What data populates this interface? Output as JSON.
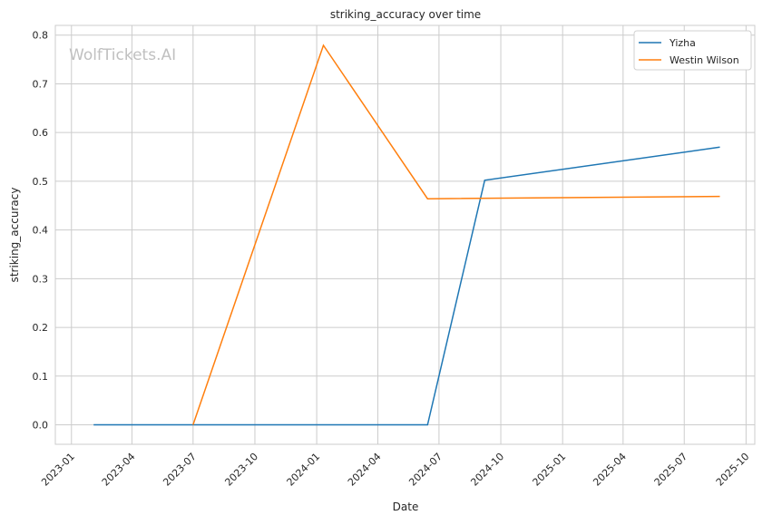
{
  "chart_data": {
    "type": "line",
    "title": "striking_accuracy over time",
    "xlabel": "Date",
    "ylabel": "striking_accuracy",
    "watermark": "WolfTickets.AI",
    "grid": true,
    "legend_position": "top-right",
    "xlim": [
      "2022-12-08",
      "2025-10-14"
    ],
    "ylim": [
      -0.04,
      0.82
    ],
    "x_ticks": [
      "2023-01",
      "2023-04",
      "2023-07",
      "2023-10",
      "2024-01",
      "2024-04",
      "2024-07",
      "2024-10",
      "2025-01",
      "2025-04",
      "2025-07",
      "2025-10"
    ],
    "y_ticks": [
      "0.0",
      "0.1",
      "0.2",
      "0.3",
      "0.4",
      "0.5",
      "0.6",
      "0.7",
      "0.8"
    ],
    "series": [
      {
        "name": "Yizha",
        "color": "#1f77b4",
        "x": [
          "2023-02-03",
          "2024-06-14",
          "2024-09-07",
          "2025-08-23"
        ],
        "y": [
          0.0,
          0.0,
          0.502,
          0.57
        ]
      },
      {
        "name": "Westin Wilson",
        "color": "#ff7f0e",
        "x": [
          "2023-07-01",
          "2024-01-11",
          "2024-06-14",
          "2025-08-23"
        ],
        "y": [
          0.0,
          0.779,
          0.464,
          0.469
        ]
      }
    ]
  }
}
